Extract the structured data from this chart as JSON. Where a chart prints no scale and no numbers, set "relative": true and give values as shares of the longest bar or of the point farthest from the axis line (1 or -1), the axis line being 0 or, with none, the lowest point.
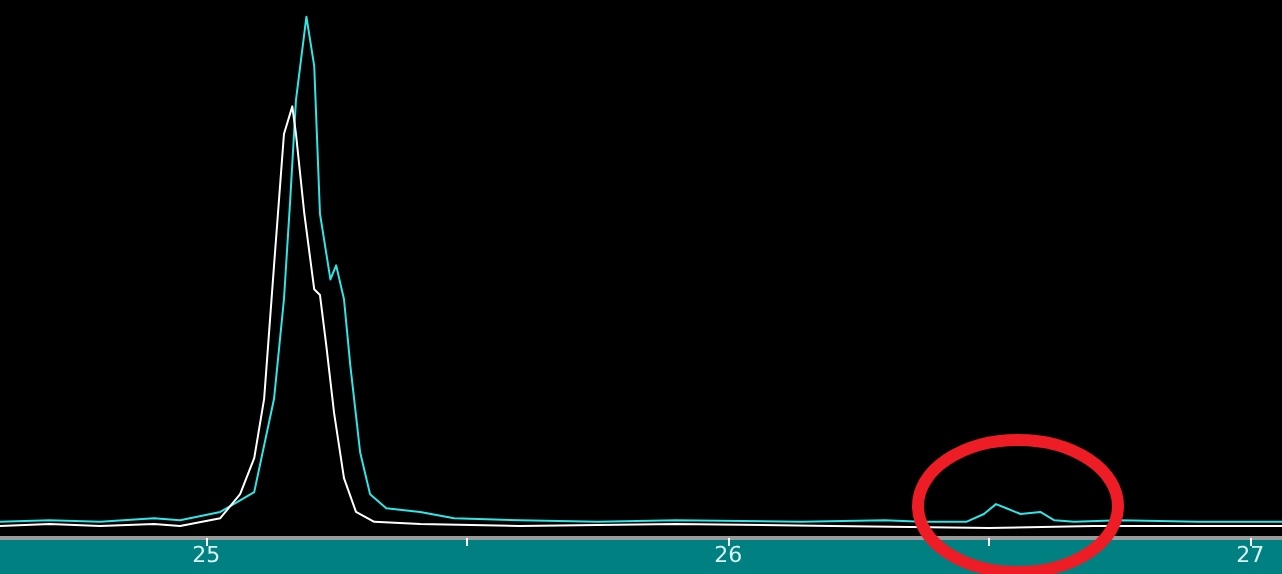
{
  "chart_data": {
    "type": "line",
    "relative": true,
    "xlim": [
      24.605,
      27.061
    ],
    "xticks": [
      25,
      {
        "value": 25.5,
        "label": null
      },
      26,
      {
        "value": 26.5,
        "label": null
      },
      27
    ],
    "grid": false,
    "marker": "none",
    "line_style": "solid",
    "series": [
      {
        "color": "#2ee6e6",
        "x": [
          24.605,
          24.7,
          24.797,
          24.9,
          24.95,
          25.027,
          25.092,
          25.13,
          25.149,
          25.161,
          25.172,
          25.192,
          25.207,
          25.218,
          25.238,
          25.249,
          25.264,
          25.276,
          25.295,
          25.314,
          25.345,
          25.41,
          25.475,
          25.6,
          25.75,
          25.9,
          26.14,
          26.3,
          26.37,
          26.456,
          26.49,
          26.513,
          26.533,
          26.56,
          26.598,
          26.625,
          26.663,
          26.75,
          26.9,
          27.061
        ],
        "values": [
          0.031,
          0.034,
          0.031,
          0.038,
          0.034,
          0.05,
          0.088,
          0.267,
          0.458,
          0.649,
          0.84,
          1,
          0.905,
          0.622,
          0.496,
          0.523,
          0.458,
          0.332,
          0.164,
          0.084,
          0.057,
          0.05,
          0.038,
          0.034,
          0.031,
          0.034,
          0.031,
          0.034,
          0.031,
          0.031,
          0.046,
          0.065,
          0.057,
          0.046,
          0.05,
          0.034,
          0.031,
          0.034,
          0.031,
          0.031
        ]
      },
      {
        "color": "#ffffff",
        "x": [
          24.605,
          24.7,
          24.797,
          24.9,
          24.95,
          25.027,
          25.065,
          25.092,
          25.111,
          25.13,
          25.149,
          25.165,
          25.172,
          25.188,
          25.207,
          25.218,
          25.23,
          25.245,
          25.264,
          25.287,
          25.322,
          25.41,
          25.6,
          25.9,
          26.2,
          26.5,
          26.7,
          27.061
        ],
        "values": [
          0.023,
          0.027,
          0.023,
          0.027,
          0.023,
          0.038,
          0.084,
          0.153,
          0.267,
          0.523,
          0.775,
          0.828,
          0.775,
          0.622,
          0.477,
          0.466,
          0.37,
          0.24,
          0.115,
          0.05,
          0.031,
          0.027,
          0.023,
          0.027,
          0.023,
          0.019,
          0.023,
          0.023
        ]
      }
    ]
  }
}
